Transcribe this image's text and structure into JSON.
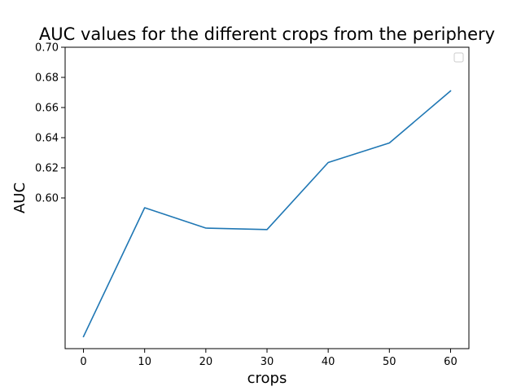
{
  "chart_data": {
    "type": "line",
    "title": "AUC values for the different crops from the periphery",
    "xlabel": "crops",
    "ylabel": "AUC",
    "x": [
      0,
      10,
      20,
      30,
      40,
      50,
      60
    ],
    "series": [
      {
        "values": [
          0.508,
          0.5935,
          0.58,
          0.579,
          0.6235,
          0.6365,
          0.671
        ],
        "color": "#1f77b4"
      }
    ],
    "xticks": [
      0,
      10,
      20,
      30,
      40,
      50,
      60
    ],
    "yticks": [
      0.6,
      0.62,
      0.64,
      0.66,
      0.68,
      0.7
    ],
    "ytick_labels": [
      "0.60",
      "0.62",
      "0.64",
      "0.66",
      "0.68",
      "0.70"
    ],
    "xlim": [
      -3,
      63
    ],
    "ylim": [
      0.5,
      0.7
    ],
    "grid": false,
    "legend": {
      "location": "top-right",
      "entries": []
    }
  }
}
